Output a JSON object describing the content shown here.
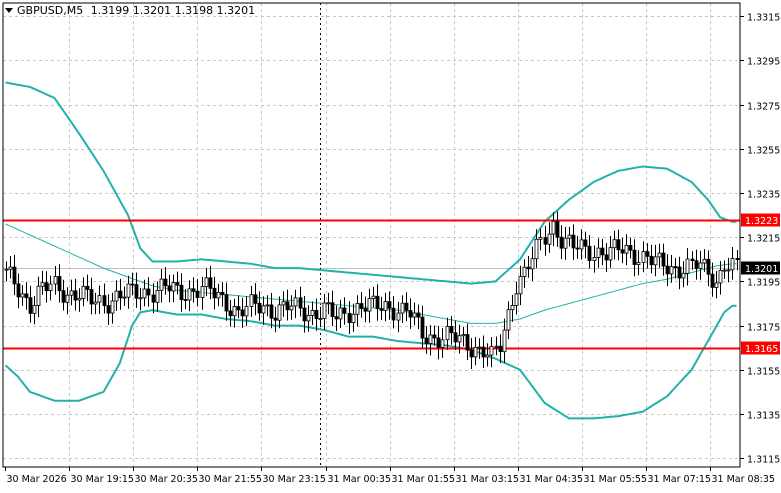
{
  "chart_data": {
    "type": "candlestick",
    "symbol_header": "GBPUSD,M5",
    "ohlc_header": "1.3199 1.3201 1.3198 1.3201",
    "y_ticks": [
      "1.3315",
      "1.3295",
      "1.3275",
      "1.3255",
      "1.3235",
      "1.3215",
      "1.3195",
      "1.3175",
      "1.3155",
      "1.3135",
      "1.3115"
    ],
    "y_tick_values": [
      1.3315,
      1.3295,
      1.3275,
      1.3255,
      1.3235,
      1.3215,
      1.3195,
      1.3175,
      1.3155,
      1.3135,
      1.3115
    ],
    "ylim": [
      1.3111,
      1.3321
    ],
    "x_tick_labels": [
      "30 Mar 2026",
      "30 Mar 19:15",
      "30 Mar 20:35",
      "30 Mar 21:55",
      "30 Mar 23:15",
      "31 Mar 00:35",
      "31 Mar 01:55",
      "31 Mar 03:15",
      "31 Mar 04:35",
      "31 Mar 05:55",
      "31 Mar 07:15",
      "31 Mar 08:35"
    ],
    "bar_count": 180,
    "price_levels": [
      {
        "label": "1.3223",
        "value": 1.3223,
        "color": "#ff0000"
      },
      {
        "label": "1.3165",
        "value": 1.3165,
        "color": "#ff0000"
      }
    ],
    "current_price": {
      "label": "1.3201",
      "value": 1.3201
    },
    "period_separator_bar": 77,
    "closes_by_bar": [
      [
        0,
        1.3198
      ],
      [
        3,
        1.3192
      ],
      [
        6,
        1.3185
      ],
      [
        9,
        1.3191
      ],
      [
        12,
        1.3193
      ],
      [
        15,
        1.319
      ],
      [
        18,
        1.3189
      ],
      [
        21,
        1.3186
      ],
      [
        24,
        1.3186
      ],
      [
        27,
        1.3188
      ],
      [
        30,
        1.3189
      ],
      [
        33,
        1.319
      ],
      [
        36,
        1.3191
      ],
      [
        39,
        1.3192
      ],
      [
        42,
        1.319
      ],
      [
        45,
        1.3191
      ],
      [
        48,
        1.3192
      ],
      [
        51,
        1.3189
      ],
      [
        54,
        1.3186
      ],
      [
        57,
        1.3181
      ],
      [
        60,
        1.3183
      ],
      [
        63,
        1.3184
      ],
      [
        66,
        1.3182
      ],
      [
        69,
        1.3183
      ],
      [
        72,
        1.3182
      ],
      [
        75,
        1.3181
      ],
      [
        78,
        1.3182
      ],
      [
        81,
        1.3178
      ],
      [
        84,
        1.3182
      ],
      [
        87,
        1.3184
      ],
      [
        90,
        1.3183
      ],
      [
        93,
        1.3184
      ],
      [
        96,
        1.3183
      ],
      [
        99,
        1.318
      ],
      [
        102,
        1.3171
      ],
      [
        105,
        1.317
      ],
      [
        108,
        1.317
      ],
      [
        111,
        1.3168
      ],
      [
        114,
        1.3166
      ],
      [
        117,
        1.3164
      ],
      [
        119,
        1.316
      ],
      [
        121,
        1.3165
      ],
      [
        123,
        1.318
      ],
      [
        125,
        1.3195
      ],
      [
        127,
        1.3199
      ],
      [
        129,
        1.3205
      ],
      [
        131,
        1.3212
      ],
      [
        133,
        1.3218
      ],
      [
        134,
        1.3221
      ],
      [
        136,
        1.3215
      ],
      [
        139,
        1.321
      ],
      [
        142,
        1.3209
      ],
      [
        145,
        1.3209
      ],
      [
        148,
        1.3208
      ],
      [
        151,
        1.3209
      ],
      [
        154,
        1.3208
      ],
      [
        157,
        1.3206
      ],
      [
        160,
        1.3202
      ],
      [
        163,
        1.3201
      ],
      [
        166,
        1.3202
      ],
      [
        169,
        1.3202
      ],
      [
        172,
        1.3199
      ],
      [
        174,
        1.3195
      ],
      [
        176,
        1.3204
      ],
      [
        178,
        1.3201
      ],
      [
        179,
        1.3201
      ]
    ],
    "bollinger_upper": [
      [
        0,
        1.3285
      ],
      [
        6,
        1.3283
      ],
      [
        12,
        1.3278
      ],
      [
        18,
        1.3262
      ],
      [
        24,
        1.3245
      ],
      [
        30,
        1.3225
      ],
      [
        33,
        1.321
      ],
      [
        36,
        1.3204
      ],
      [
        42,
        1.3204
      ],
      [
        48,
        1.3205
      ],
      [
        54,
        1.3204
      ],
      [
        60,
        1.3203
      ],
      [
        66,
        1.3201
      ],
      [
        72,
        1.3201
      ],
      [
        78,
        1.32
      ],
      [
        84,
        1.3199
      ],
      [
        90,
        1.3198
      ],
      [
        96,
        1.3197
      ],
      [
        102,
        1.3196
      ],
      [
        108,
        1.3195
      ],
      [
        114,
        1.3194
      ],
      [
        120,
        1.3195
      ],
      [
        126,
        1.3205
      ],
      [
        132,
        1.3222
      ],
      [
        138,
        1.3232
      ],
      [
        144,
        1.324
      ],
      [
        150,
        1.3245
      ],
      [
        156,
        1.3247
      ],
      [
        162,
        1.3246
      ],
      [
        168,
        1.324
      ],
      [
        172,
        1.3232
      ],
      [
        175,
        1.3224
      ],
      [
        178,
        1.3222
      ]
    ],
    "bollinger_middle": [
      [
        0,
        1.3221
      ],
      [
        6,
        1.3216
      ],
      [
        12,
        1.3211
      ],
      [
        18,
        1.3206
      ],
      [
        24,
        1.3201
      ],
      [
        30,
        1.3197
      ],
      [
        36,
        1.3193
      ],
      [
        42,
        1.3191
      ],
      [
        48,
        1.319
      ],
      [
        54,
        1.3189
      ],
      [
        60,
        1.3188
      ],
      [
        66,
        1.3187
      ],
      [
        72,
        1.3186
      ],
      [
        78,
        1.3185
      ],
      [
        84,
        1.3184
      ],
      [
        90,
        1.3183
      ],
      [
        96,
        1.3182
      ],
      [
        102,
        1.318
      ],
      [
        108,
        1.3178
      ],
      [
        114,
        1.3176
      ],
      [
        120,
        1.3176
      ],
      [
        126,
        1.3178
      ],
      [
        132,
        1.3182
      ],
      [
        138,
        1.3185
      ],
      [
        144,
        1.3188
      ],
      [
        150,
        1.3191
      ],
      [
        156,
        1.3194
      ],
      [
        162,
        1.3196
      ],
      [
        168,
        1.3199
      ],
      [
        174,
        1.3202
      ],
      [
        178,
        1.3203
      ]
    ],
    "bollinger_lower": [
      [
        0,
        1.3157
      ],
      [
        3,
        1.3152
      ],
      [
        6,
        1.3145
      ],
      [
        12,
        1.3141
      ],
      [
        18,
        1.3141
      ],
      [
        24,
        1.3145
      ],
      [
        28,
        1.3158
      ],
      [
        31,
        1.3175
      ],
      [
        33,
        1.3181
      ],
      [
        36,
        1.3182
      ],
      [
        42,
        1.318
      ],
      [
        48,
        1.318
      ],
      [
        54,
        1.3178
      ],
      [
        60,
        1.3177
      ],
      [
        66,
        1.3175
      ],
      [
        72,
        1.3175
      ],
      [
        78,
        1.3173
      ],
      [
        84,
        1.317
      ],
      [
        90,
        1.317
      ],
      [
        96,
        1.3168
      ],
      [
        102,
        1.3167
      ],
      [
        108,
        1.3166
      ],
      [
        114,
        1.3164
      ],
      [
        120,
        1.316
      ],
      [
        126,
        1.3155
      ],
      [
        132,
        1.314
      ],
      [
        138,
        1.3133
      ],
      [
        144,
        1.3133
      ],
      [
        150,
        1.3134
      ],
      [
        156,
        1.3136
      ],
      [
        162,
        1.3143
      ],
      [
        168,
        1.3155
      ],
      [
        172,
        1.3168
      ],
      [
        176,
        1.3181
      ],
      [
        178,
        1.3184
      ]
    ],
    "colors": {
      "background": "#ffffff",
      "grid": "#c8c8c8",
      "axis": "#000000",
      "candle": "#000000",
      "bands": "#20b2aa",
      "level": "#ff0000",
      "price_tag": "#000000"
    },
    "grid": true
  }
}
